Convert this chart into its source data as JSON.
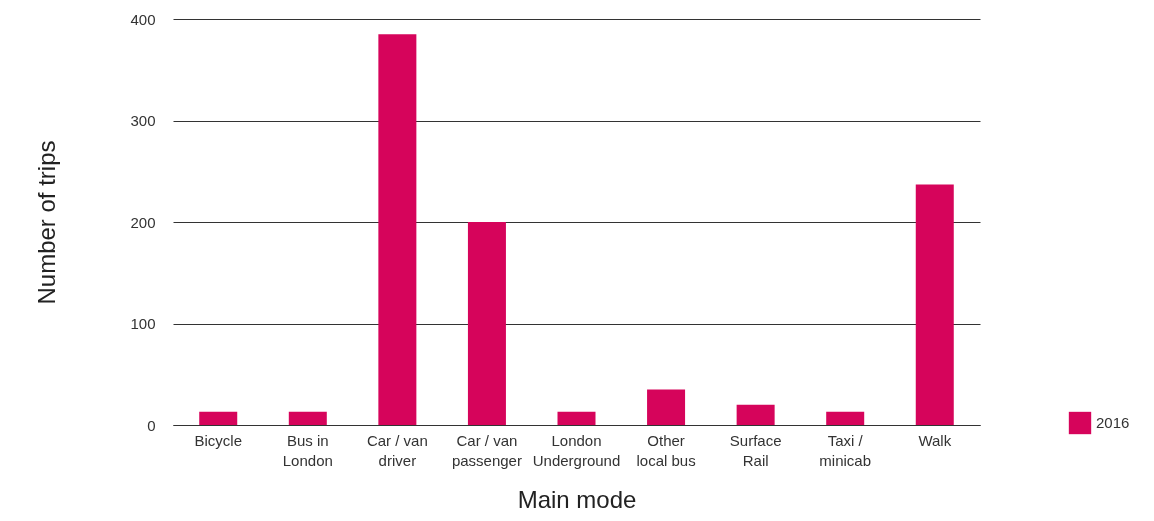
{
  "chart_data": {
    "type": "bar",
    "xlabel": "Main mode",
    "ylabel": "Number of trips",
    "categories": [
      "Bicycle",
      "Bus in London",
      "Car / van driver",
      "Car / van passenger",
      "London Underground",
      "Other local bus",
      "Surface Rail",
      "Taxi / minicab",
      "Walk"
    ],
    "series": [
      {
        "name": "2016",
        "color": "#d6045b",
        "values": [
          13,
          13,
          385,
          200,
          13,
          35,
          20,
          13,
          237
        ]
      }
    ],
    "ylim": [
      0,
      400
    ],
    "yticks": [
      0,
      100,
      200,
      300,
      400
    ],
    "grid": "y",
    "legend": "bottom right"
  }
}
